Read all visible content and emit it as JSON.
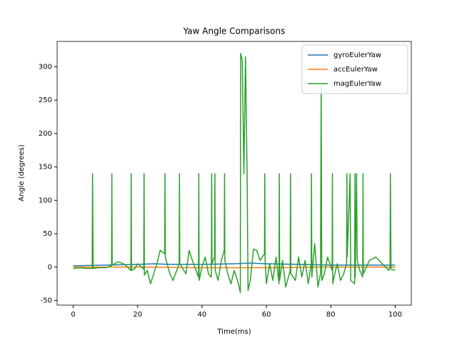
{
  "chart_data": {
    "type": "line",
    "title": "Yaw Angle Comparisons",
    "x_label": "Time(ms)",
    "y_label": "Angle (degrees)",
    "xlim": [
      -5,
      105
    ],
    "ylim": [
      -57,
      338
    ],
    "xticks": [
      0,
      20,
      40,
      60,
      80,
      100
    ],
    "yticks": [
      -50,
      0,
      50,
      100,
      150,
      200,
      250,
      300
    ],
    "legend": "upper right",
    "series": [
      {
        "name": "gyroEulerYaw",
        "color": "#1f77b4",
        "x": [
          0,
          10,
          20,
          25,
          30,
          40,
          50,
          55,
          60,
          70,
          80,
          90,
          100
        ],
        "values": [
          2,
          3,
          4,
          5,
          4,
          4,
          5,
          6,
          5,
          4,
          3,
          3,
          3
        ]
      },
      {
        "name": "accEulerYaw",
        "color": "#ff7f0e",
        "x": [
          0,
          20,
          40,
          60,
          80,
          100
        ],
        "values": [
          0,
          0,
          -1,
          -1,
          0,
          0
        ]
      },
      {
        "name": "magEulerYaw",
        "color": "#2ca02c",
        "x": [
          0,
          2,
          4,
          5.9,
          6,
          6.2,
          8,
          10,
          11.9,
          12,
          12.1,
          14,
          16,
          17.9,
          18,
          18.1,
          19,
          20,
          21.9,
          22,
          22.1,
          23,
          24,
          25,
          26,
          27,
          28.4,
          28.5,
          28.6,
          30,
          31,
          32.9,
          33,
          33.1,
          35,
          36,
          37,
          38.9,
          39,
          39.1,
          40,
          41,
          42,
          42.9,
          43,
          43.1,
          43.9,
          44,
          44.1,
          45,
          46,
          46.9,
          47,
          47.1,
          48,
          49,
          50,
          51,
          51.9,
          52,
          52.5,
          53,
          53.5,
          54,
          54.3,
          55,
          56,
          57,
          58,
          59.4,
          59.5,
          59.6,
          60,
          61,
          62,
          63,
          63.9,
          64,
          64.1,
          65,
          66,
          67.4,
          67.5,
          67.6,
          69,
          70,
          71,
          72,
          73,
          73.9,
          74,
          74.1,
          75,
          76,
          76.8,
          77,
          77.2,
          78,
          79,
          80.4,
          80.5,
          80.6,
          81,
          82,
          83,
          84,
          84.9,
          85,
          85.1,
          86,
          86.2,
          87.4,
          87.5,
          87.6,
          88,
          88.2,
          89,
          89.9,
          90,
          90.1,
          92,
          94,
          96,
          98,
          98.4,
          98.5,
          98.7,
          100
        ],
        "values": [
          -2,
          -1,
          -2,
          -2,
          140,
          -2,
          -1,
          -1,
          2,
          140,
          3,
          8,
          4,
          -5,
          140,
          -5,
          -3,
          5,
          -3,
          140,
          -12,
          -5,
          -25,
          -10,
          5,
          25,
          20,
          140,
          15,
          -10,
          -20,
          5,
          140,
          5,
          -10,
          25,
          10,
          -15,
          140,
          -20,
          0,
          15,
          -10,
          -15,
          140,
          5,
          15,
          140,
          -5,
          -20,
          10,
          25,
          140,
          10,
          -10,
          -25,
          -5,
          -20,
          -38,
          320,
          310,
          140,
          315,
          140,
          -35,
          -20,
          27,
          25,
          10,
          20,
          140,
          10,
          -25,
          5,
          -20,
          15,
          -25,
          140,
          -20,
          10,
          -30,
          -5,
          140,
          -10,
          -20,
          15,
          -15,
          10,
          -25,
          5,
          140,
          -15,
          35,
          -30,
          -10,
          270,
          -20,
          -10,
          15,
          -5,
          140,
          -25,
          -15,
          5,
          -20,
          -10,
          5,
          140,
          15,
          140,
          -20,
          -25,
          140,
          -15,
          140,
          10,
          -5,
          -15,
          140,
          -10,
          10,
          15,
          5,
          -5,
          0,
          140,
          -3,
          -5
        ]
      }
    ]
  }
}
